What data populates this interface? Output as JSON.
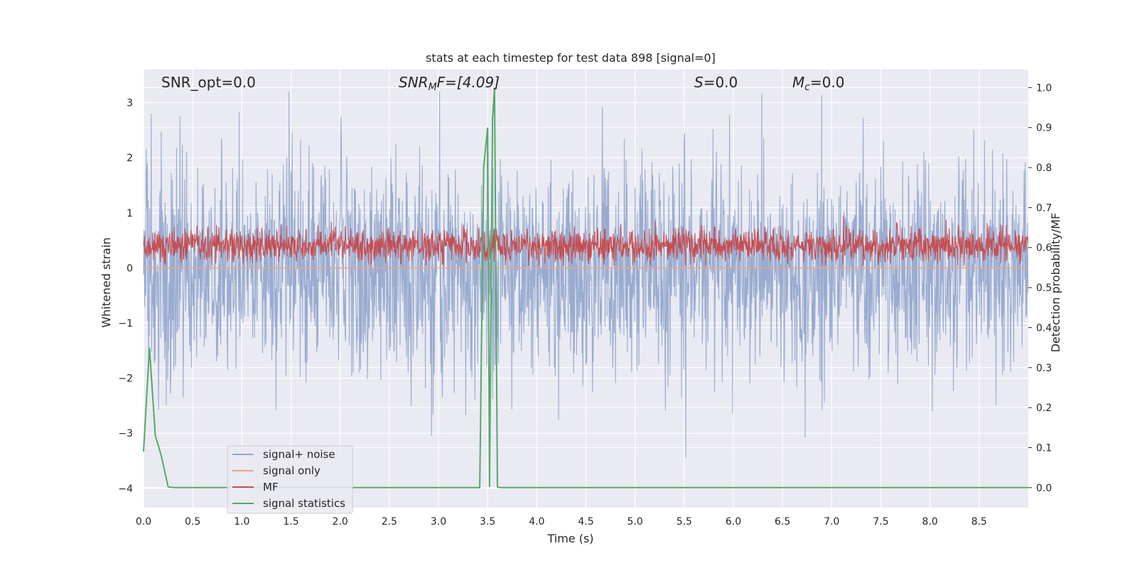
{
  "chart_data": {
    "type": "line",
    "title": "stats at each timestep for test data 898 [signal=0]",
    "xlabel": "Time (s)",
    "ylabel": "Whitened strain",
    "y2label": "Detection probability/MF",
    "xlim": [
      0.0,
      9.0
    ],
    "ylim": [
      -4.35,
      3.6
    ],
    "y2lim": [
      -0.05,
      1.045
    ],
    "x_ticks": [
      0.0,
      0.5,
      1.0,
      1.5,
      2.0,
      2.5,
      3.0,
      3.5,
      4.0,
      4.5,
      5.0,
      5.5,
      6.0,
      6.5,
      7.0,
      7.5,
      8.0,
      8.5
    ],
    "x_tick_labels": [
      "0.0",
      "0.5",
      "1.0",
      "1.5",
      "2.0",
      "2.5",
      "3.0",
      "3.5",
      "4.0",
      "4.5",
      "5.0",
      "5.5",
      "6.0",
      "6.5",
      "7.0",
      "7.5",
      "8.0",
      "8.5"
    ],
    "y_ticks": [
      -4,
      -3,
      -2,
      -1,
      0,
      1,
      2,
      3
    ],
    "y_tick_labels": [
      "−4",
      "−3",
      "−2",
      "−1",
      "0",
      "1",
      "2",
      "3"
    ],
    "y2_ticks": [
      0.0,
      0.1,
      0.2,
      0.3,
      0.4,
      0.5,
      0.6,
      0.7,
      0.8,
      0.9,
      1.0
    ],
    "y2_tick_labels": [
      "0.0",
      "0.1",
      "0.2",
      "0.3",
      "0.4",
      "0.5",
      "0.6",
      "0.7",
      "0.8",
      "0.9",
      "1.0"
    ],
    "annotations": {
      "snr_opt": "SNR_opt=0.0",
      "snr_mf_italic": "SNR",
      "snr_mf_sub": "M",
      "snr_mf_rest": "F=[4.09]",
      "s_italic": "S",
      "s_rest": "=0.0",
      "mc_italic": "M",
      "mc_sub": "c",
      "mc_rest": "=0.0"
    },
    "grid": true,
    "legend_position": "lower-left",
    "series": [
      {
        "name": "signal+ noise",
        "color": "#94a8ce",
        "kind": "noise",
        "axis": "left",
        "sample_rate_hz": 256,
        "std": 0.95,
        "max": 3.2,
        "min": -4.0
      },
      {
        "name": "signal only",
        "color": "#e8a58a",
        "kind": "constant",
        "axis": "left",
        "value": 0.0
      },
      {
        "name": "MF",
        "color": "#c44e52",
        "kind": "noise",
        "axis": "right",
        "mean": 0.605,
        "range": [
          0.555,
          0.69
        ]
      },
      {
        "name": "signal statistics",
        "color": "#55a868",
        "kind": "line",
        "axis": "right",
        "x": [
          0.0,
          0.06,
          0.12,
          0.18,
          0.25,
          0.31,
          3.42,
          3.46,
          3.5,
          3.52,
          3.55,
          3.57,
          3.6,
          3.63,
          9.0
        ],
        "y": [
          0.09,
          0.35,
          0.13,
          0.08,
          0.002,
          0.0,
          0.0,
          0.8,
          0.9,
          0.002,
          0.92,
          1.0,
          0.002,
          0.0,
          0.0
        ]
      }
    ]
  }
}
